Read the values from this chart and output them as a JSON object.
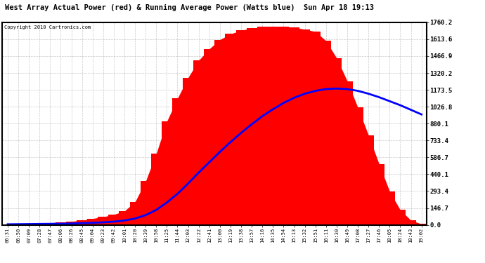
{
  "title": "West Array Actual Power (red) & Running Average Power (Watts blue)  Sun Apr 18 19:13",
  "copyright": "Copyright 2010 Cartronics.com",
  "yticks": [
    0.0,
    146.7,
    293.4,
    440.1,
    586.7,
    733.4,
    880.1,
    1026.8,
    1173.5,
    1320.2,
    1466.9,
    1613.6,
    1760.2
  ],
  "ymax": 1760.2,
  "ymin": 0.0,
  "bg_color": "#ffffff",
  "plot_bg_color": "#ffffff",
  "grid_color": "#bbbbbb",
  "fill_color": "#ff0000",
  "avg_color": "#0000ff",
  "xtick_labels": [
    "06:31",
    "06:50",
    "07:09",
    "07:28",
    "07:47",
    "08:06",
    "08:26",
    "08:45",
    "09:04",
    "09:23",
    "09:42",
    "10:01",
    "10:20",
    "10:39",
    "10:58",
    "11:25",
    "11:44",
    "12:03",
    "12:22",
    "12:41",
    "13:00",
    "13:19",
    "13:38",
    "13:57",
    "14:16",
    "14:35",
    "14:54",
    "15:13",
    "15:32",
    "15:51",
    "16:11",
    "16:30",
    "16:49",
    "17:08",
    "17:27",
    "17:46",
    "18:05",
    "18:24",
    "18:43",
    "19:02"
  ],
  "actual_power": [
    5,
    8,
    12,
    15,
    18,
    22,
    30,
    40,
    55,
    70,
    90,
    120,
    200,
    380,
    620,
    900,
    1100,
    1280,
    1430,
    1530,
    1610,
    1660,
    1690,
    1710,
    1720,
    1725,
    1720,
    1715,
    1700,
    1680,
    1600,
    1450,
    1250,
    1020,
    780,
    530,
    290,
    130,
    40,
    8
  ],
  "avg_power": [
    5,
    6,
    7,
    8,
    9,
    10,
    12,
    15,
    18,
    22,
    28,
    38,
    55,
    85,
    130,
    195,
    270,
    360,
    455,
    545,
    635,
    720,
    800,
    875,
    945,
    1005,
    1060,
    1105,
    1140,
    1165,
    1180,
    1185,
    1180,
    1165,
    1140,
    1110,
    1075,
    1040,
    1000,
    960
  ]
}
